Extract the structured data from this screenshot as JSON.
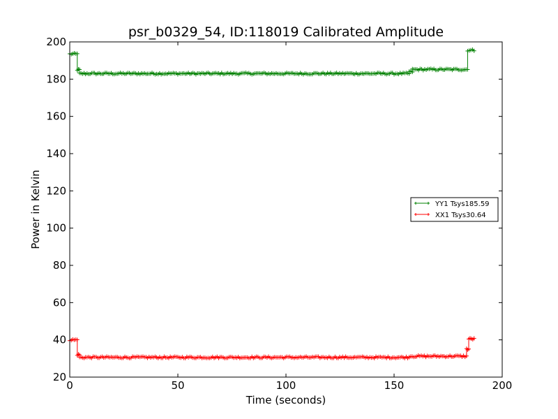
{
  "chart_data": {
    "type": "line",
    "title": "psr_b0329_54, ID:118019 Calibrated Amplitude",
    "xlabel": "Time (seconds)",
    "ylabel": "Power in Kelvin",
    "xlim": [
      0,
      200
    ],
    "ylim": [
      20,
      200
    ],
    "x_ticks": [
      0,
      50,
      100,
      150,
      200
    ],
    "y_ticks": [
      20,
      40,
      60,
      80,
      100,
      120,
      140,
      160,
      180,
      200
    ],
    "grid": false,
    "legend": "center-right",
    "series": [
      {
        "name": "YY1 Tsys185.59",
        "color": "#008000",
        "marker": "+",
        "segments": [
          {
            "x0": 0.0,
            "x1": 3.5,
            "y": 193.5
          },
          {
            "x0": 3.5,
            "x1": 4.5,
            "y": 185.0
          },
          {
            "x0": 4.5,
            "x1": 157.0,
            "y": 183.0
          },
          {
            "x0": 157.0,
            "x1": 158.5,
            "y": 184.0
          },
          {
            "x0": 158.5,
            "x1": 184.0,
            "y": 185.2
          },
          {
            "x0": 184.0,
            "x1": 187.0,
            "y": 195.5
          }
        ]
      },
      {
        "name": "XX1 Tsys30.64",
        "color": "#ff0000",
        "marker": "+",
        "segments": [
          {
            "x0": 0.0,
            "x1": 3.5,
            "y": 40.0
          },
          {
            "x0": 3.5,
            "x1": 4.5,
            "y": 32.0
          },
          {
            "x0": 4.5,
            "x1": 157.0,
            "y": 30.6
          },
          {
            "x0": 157.0,
            "x1": 183.5,
            "y": 31.2
          },
          {
            "x0": 183.5,
            "x1": 184.5,
            "y": 35.0
          },
          {
            "x0": 184.5,
            "x1": 187.0,
            "y": 40.5
          }
        ]
      }
    ]
  }
}
